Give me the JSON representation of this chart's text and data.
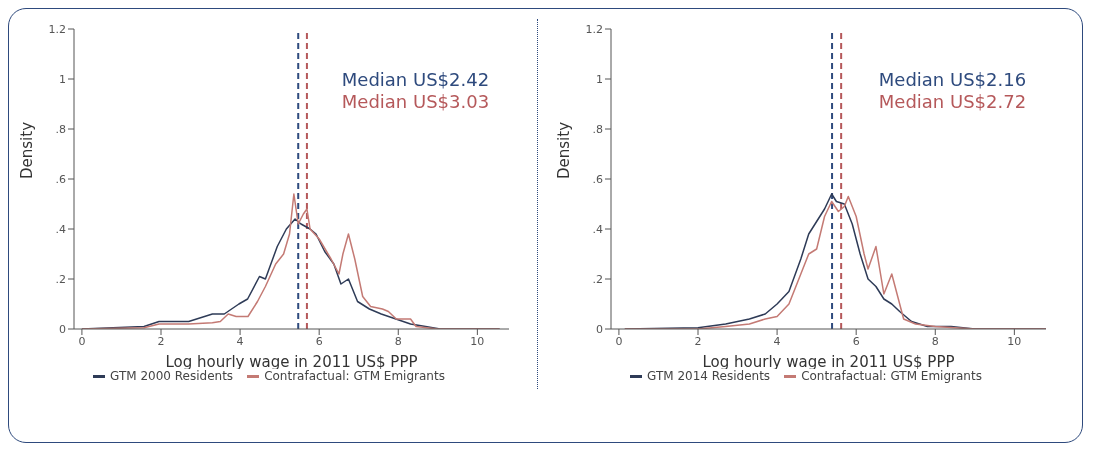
{
  "chart_data": [
    {
      "type": "line",
      "xlabel": "Log hourly wage in 2011 US$ PPP",
      "ylabel": "Density",
      "xlim": [
        -0.2,
        10.8
      ],
      "ylim": [
        0,
        1.2
      ],
      "xticks": [
        0,
        2,
        4,
        6,
        8,
        10
      ],
      "yticks": [
        0,
        {
          "value": 0.2,
          "label": ".2"
        },
        {
          "value": 0.4,
          "label": ".4"
        },
        {
          "value": 0.6,
          "label": ".6"
        },
        {
          "value": 0.8,
          "label": ".8"
        },
        1,
        1.2
      ],
      "grid": false,
      "legend": "bottom",
      "marker": "none",
      "line_style": "solid",
      "series": [
        {
          "name": "GTM 2000 Residents",
          "color": "#2e3b57",
          "x": [
            0,
            1.57,
            1.95,
            2.7,
            3.3,
            3.6,
            3.97,
            4.19,
            4.49,
            4.64,
            4.94,
            5.17,
            5.39,
            5.54,
            5.77,
            5.92,
            6.14,
            6.37,
            6.55,
            6.74,
            6.97,
            7.27,
            7.57,
            7.94,
            8.31,
            8.69,
            9.06,
            10.56
          ],
          "values": [
            0,
            0.01,
            0.03,
            0.03,
            0.06,
            0.06,
            0.1,
            0.12,
            0.21,
            0.2,
            0.33,
            0.4,
            0.44,
            0.42,
            0.4,
            0.38,
            0.31,
            0.26,
            0.18,
            0.2,
            0.11,
            0.08,
            0.06,
            0.04,
            0.02,
            0.01,
            0,
            0
          ]
        },
        {
          "name": "Contrafactual: GTM Emigrants",
          "color": "#c47a74",
          "x": [
            0,
            1.57,
            1.95,
            2.7,
            3.3,
            3.5,
            3.7,
            3.9,
            4.2,
            4.44,
            4.64,
            4.9,
            5.1,
            5.25,
            5.36,
            5.47,
            5.6,
            5.69,
            5.77,
            6.0,
            6.3,
            6.5,
            6.6,
            6.74,
            6.9,
            7.1,
            7.3,
            7.6,
            7.75,
            7.95,
            8.31,
            8.45,
            9.0,
            10.56
          ],
          "values": [
            0,
            0.005,
            0.02,
            0.02,
            0.025,
            0.03,
            0.06,
            0.05,
            0.05,
            0.11,
            0.17,
            0.26,
            0.3,
            0.38,
            0.54,
            0.42,
            0.46,
            0.48,
            0.4,
            0.36,
            0.28,
            0.22,
            0.3,
            0.38,
            0.28,
            0.13,
            0.09,
            0.08,
            0.07,
            0.04,
            0.04,
            0.01,
            0,
            0
          ]
        }
      ],
      "ref_lines": [
        {
          "axis": "x",
          "value": 5.47,
          "color": "#2e4a7d",
          "line_style": "dashed"
        },
        {
          "axis": "x",
          "value": 5.69,
          "color": "#b5585a",
          "line_style": "dashed"
        }
      ],
      "annotations": [
        "Median US$2.42",
        "Median US$3.03"
      ]
    },
    {
      "type": "line",
      "xlabel": "Log hourly wage in 2011 US$ PPP",
      "ylabel": "Density",
      "xlim": [
        -0.2,
        10.8
      ],
      "ylim": [
        0,
        1.2
      ],
      "xticks": [
        0,
        2,
        4,
        6,
        8,
        10
      ],
      "yticks": [
        0,
        {
          "value": 0.2,
          "label": ".2"
        },
        {
          "value": 0.4,
          "label": ".4"
        },
        {
          "value": 0.6,
          "label": ".6"
        },
        {
          "value": 0.8,
          "label": ".8"
        },
        1,
        1.2
      ],
      "grid": false,
      "legend": "bottom",
      "marker": "none",
      "line_style": "solid",
      "series": [
        {
          "name": "GTM 2014 Residents",
          "color": "#2e3b57",
          "x": [
            0.15,
            2.0,
            2.7,
            3.3,
            3.7,
            4.0,
            4.3,
            4.6,
            4.8,
            5.0,
            5.2,
            5.38,
            5.5,
            5.7,
            5.9,
            6.1,
            6.3,
            6.5,
            6.7,
            6.9,
            7.1,
            7.4,
            7.8,
            8.4,
            9.0,
            10.8
          ],
          "values": [
            0,
            0.005,
            0.02,
            0.04,
            0.06,
            0.1,
            0.15,
            0.28,
            0.38,
            0.43,
            0.48,
            0.54,
            0.51,
            0.5,
            0.42,
            0.3,
            0.2,
            0.17,
            0.12,
            0.1,
            0.07,
            0.03,
            0.01,
            0.01,
            0,
            0
          ]
        },
        {
          "name": "Contrafactual: GTM Emigrants",
          "color": "#c47a74",
          "x": [
            0.15,
            2.0,
            2.7,
            3.3,
            3.7,
            4.0,
            4.3,
            4.6,
            4.8,
            5.0,
            5.2,
            5.38,
            5.55,
            5.7,
            5.8,
            6.0,
            6.2,
            6.3,
            6.5,
            6.7,
            6.9,
            7.1,
            7.2,
            7.5,
            8.0,
            9.0,
            10.8
          ],
          "values": [
            0,
            0,
            0.01,
            0.02,
            0.04,
            0.05,
            0.1,
            0.22,
            0.3,
            0.32,
            0.45,
            0.51,
            0.47,
            0.49,
            0.53,
            0.45,
            0.3,
            0.24,
            0.33,
            0.14,
            0.22,
            0.1,
            0.04,
            0.02,
            0.01,
            0,
            0
          ]
        }
      ],
      "ref_lines": [
        {
          "axis": "x",
          "value": 5.39,
          "color": "#2e4a7d",
          "line_style": "dashed"
        },
        {
          "axis": "x",
          "value": 5.62,
          "color": "#b5585a",
          "line_style": "dashed"
        }
      ],
      "annotations": [
        "Median US$2.16",
        "Median US$2.72"
      ]
    }
  ]
}
